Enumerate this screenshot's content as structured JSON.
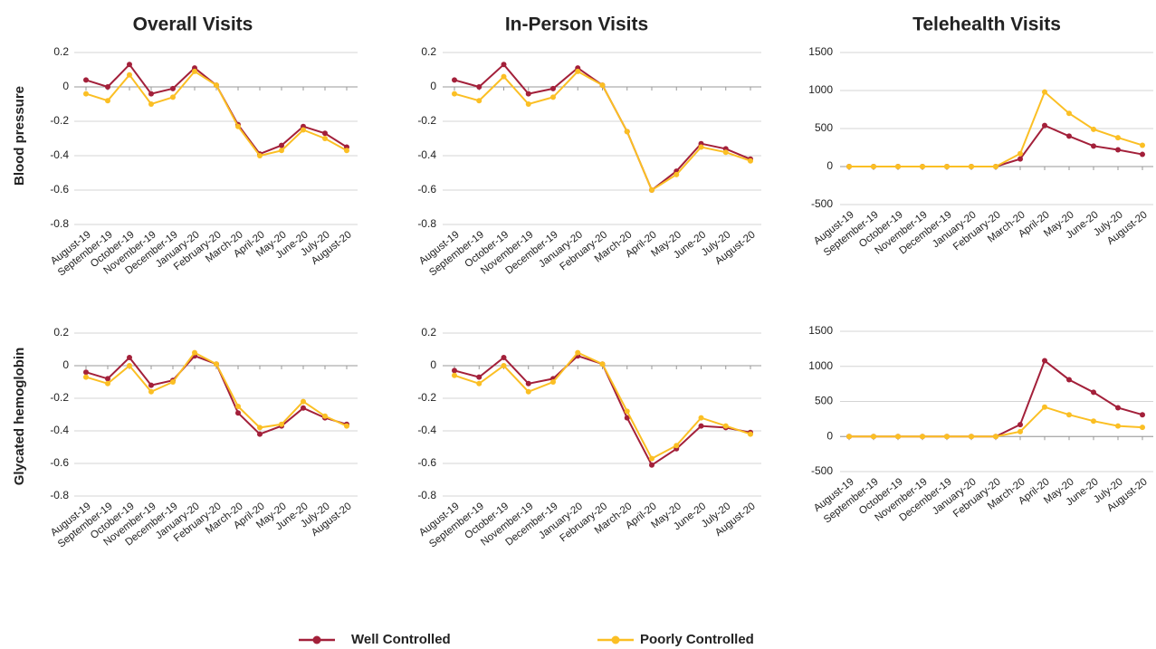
{
  "chart_data": [
    {
      "type": "line",
      "title": "Overall Visits",
      "ylabel": "Blood pressure",
      "categories": [
        "August-19",
        "September-19",
        "October-19",
        "November-19",
        "December-19",
        "January-20",
        "February-20",
        "March-20",
        "April-20",
        "May-20",
        "June-20",
        "July-20",
        "August-20"
      ],
      "series": [
        {
          "name": "Well Controlled",
          "color": "#a3203a",
          "values": [
            0.04,
            0.0,
            0.13,
            -0.04,
            -0.01,
            0.11,
            0.01,
            -0.22,
            -0.39,
            -0.34,
            -0.23,
            -0.27,
            -0.35
          ]
        },
        {
          "name": "Poorly Controlled",
          "color": "#fbbf24",
          "values": [
            -0.04,
            -0.08,
            0.07,
            -0.1,
            -0.06,
            0.09,
            0.01,
            -0.23,
            -0.4,
            -0.37,
            -0.25,
            -0.3,
            -0.37
          ]
        }
      ],
      "ylim": [
        -0.8,
        0.2
      ],
      "yticks": [
        -0.8,
        -0.6,
        -0.4,
        -0.2,
        0,
        0.2
      ],
      "grid": true
    },
    {
      "type": "line",
      "title": "In-Person Visits",
      "categories": [
        "August-19",
        "September-19",
        "October-19",
        "November-19",
        "December-19",
        "January-20",
        "February-20",
        "March-20",
        "April-20",
        "May-20",
        "June-20",
        "July-20",
        "August-20"
      ],
      "series": [
        {
          "color": "#a3203a",
          "values": [
            0.04,
            0.0,
            0.13,
            -0.04,
            -0.01,
            0.11,
            0.01,
            -0.26,
            -0.6,
            -0.49,
            -0.33,
            -0.36,
            -0.42
          ]
        },
        {
          "color": "#fbbf24",
          "values": [
            -0.04,
            -0.08,
            0.06,
            -0.1,
            -0.06,
            0.09,
            0.01,
            -0.26,
            -0.6,
            -0.51,
            -0.35,
            -0.38,
            -0.43
          ]
        }
      ],
      "ylim": [
        -0.8,
        0.2
      ],
      "yticks": [
        -0.8,
        -0.6,
        -0.4,
        -0.2,
        0,
        0.2
      ],
      "grid": true
    },
    {
      "type": "line",
      "title": "Telehealth Visits",
      "categories": [
        "August-19",
        "September-19",
        "October-19",
        "November-19",
        "December-19",
        "January-20",
        "February-20",
        "March-20",
        "April-20",
        "May-20",
        "June-20",
        "July-20",
        "August-20"
      ],
      "series": [
        {
          "color": "#a3203a",
          "values": [
            0,
            0,
            0,
            0,
            0,
            0,
            0,
            100,
            540,
            400,
            270,
            220,
            160
          ]
        },
        {
          "color": "#fbbf24",
          "values": [
            0,
            0,
            0,
            0,
            0,
            0,
            0,
            170,
            980,
            700,
            490,
            380,
            280
          ]
        }
      ],
      "ylim": [
        -500,
        1500
      ],
      "yticks": [
        -500,
        0,
        500,
        1000,
        1500
      ],
      "grid": true
    },
    {
      "type": "line",
      "ylabel": "Glycated hemoglobin",
      "categories": [
        "August-19",
        "September-19",
        "October-19",
        "November-19",
        "December-19",
        "January-20",
        "February-20",
        "March-20",
        "April-20",
        "May-20",
        "June-20",
        "July-20",
        "August-20"
      ],
      "series": [
        {
          "color": "#a3203a",
          "values": [
            -0.04,
            -0.08,
            0.05,
            -0.12,
            -0.09,
            0.06,
            0.01,
            -0.29,
            -0.42,
            -0.37,
            -0.26,
            -0.32,
            -0.36
          ]
        },
        {
          "color": "#fbbf24",
          "values": [
            -0.07,
            -0.11,
            0.0,
            -0.16,
            -0.1,
            0.08,
            0.01,
            -0.25,
            -0.38,
            -0.36,
            -0.22,
            -0.31,
            -0.37
          ]
        }
      ],
      "ylim": [
        -0.8,
        0.2
      ],
      "yticks": [
        -0.8,
        -0.6,
        -0.4,
        -0.2,
        0,
        0.2
      ],
      "grid": true
    },
    {
      "type": "line",
      "categories": [
        "August-19",
        "September-19",
        "October-19",
        "November-19",
        "December-19",
        "January-20",
        "February-20",
        "March-20",
        "April-20",
        "May-20",
        "June-20",
        "July-20",
        "August-20"
      ],
      "series": [
        {
          "color": "#a3203a",
          "values": [
            -0.03,
            -0.07,
            0.05,
            -0.11,
            -0.08,
            0.06,
            0.01,
            -0.32,
            -0.61,
            -0.51,
            -0.37,
            -0.38,
            -0.41
          ]
        },
        {
          "color": "#fbbf24",
          "values": [
            -0.06,
            -0.11,
            0.0,
            -0.16,
            -0.1,
            0.08,
            0.01,
            -0.28,
            -0.57,
            -0.49,
            -0.32,
            -0.37,
            -0.42
          ]
        }
      ],
      "ylim": [
        -0.8,
        0.2
      ],
      "yticks": [
        -0.8,
        -0.6,
        -0.4,
        -0.2,
        0,
        0.2
      ],
      "grid": true
    },
    {
      "type": "line",
      "categories": [
        "August-19",
        "September-19",
        "October-19",
        "November-19",
        "December-19",
        "January-20",
        "February-20",
        "March-20",
        "April-20",
        "May-20",
        "June-20",
        "July-20",
        "August-20"
      ],
      "series": [
        {
          "color": "#a3203a",
          "values": [
            0,
            0,
            0,
            0,
            0,
            0,
            0,
            170,
            1080,
            810,
            630,
            410,
            310
          ]
        },
        {
          "color": "#fbbf24",
          "values": [
            0,
            0,
            0,
            0,
            0,
            0,
            0,
            70,
            420,
            310,
            220,
            150,
            130
          ]
        }
      ],
      "ylim": [
        -500,
        1500
      ],
      "yticks": [
        -500,
        0,
        500,
        1000,
        1500
      ],
      "grid": true
    }
  ]
}
